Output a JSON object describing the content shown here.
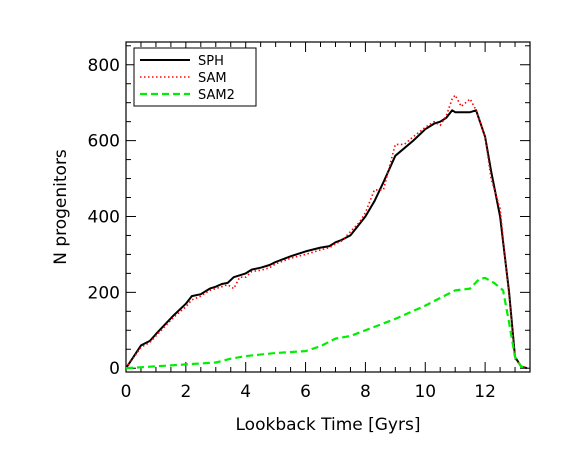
{
  "chart_data": {
    "type": "line",
    "xlabel": "Lookback Time [Gyrs]",
    "ylabel": "N progenitors",
    "xlim": [
      0,
      13.5
    ],
    "ylim": [
      -10,
      860
    ],
    "xticks": [
      0,
      2,
      4,
      6,
      8,
      10,
      12
    ],
    "yticks": [
      0,
      200,
      400,
      600,
      800
    ],
    "legend_position": "top-left",
    "series": [
      {
        "name": "SPH",
        "color": "#000000",
        "style": "solid",
        "x": [
          0,
          0.5,
          0.8,
          1.0,
          1.3,
          1.6,
          2.0,
          2.2,
          2.5,
          2.6,
          2.8,
          3.0,
          3.2,
          3.4,
          3.6,
          3.8,
          4.0,
          4.2,
          4.5,
          4.8,
          5.0,
          5.5,
          6.0,
          6.5,
          6.8,
          7.0,
          7.2,
          7.5,
          7.8,
          8.0,
          8.3,
          8.6,
          9.0,
          9.3,
          9.6,
          10.0,
          10.3,
          10.5,
          10.7,
          10.9,
          11.0,
          11.2,
          11.5,
          11.7,
          12.0,
          12.2,
          12.5,
          12.8,
          13.0,
          13.2,
          13.4
        ],
        "y": [
          0,
          60,
          72,
          90,
          115,
          140,
          170,
          190,
          195,
          200,
          210,
          215,
          222,
          225,
          240,
          245,
          250,
          260,
          265,
          272,
          280,
          295,
          308,
          318,
          322,
          332,
          338,
          350,
          380,
          400,
          440,
          490,
          560,
          580,
          600,
          630,
          645,
          650,
          660,
          680,
          675,
          675,
          675,
          680,
          610,
          520,
          400,
          200,
          30,
          5,
          0
        ]
      },
      {
        "name": "SAM",
        "color": "#ff0000",
        "style": "dotted",
        "x": [
          0,
          0.5,
          0.8,
          1.0,
          1.3,
          1.6,
          2.0,
          2.2,
          2.5,
          2.6,
          2.8,
          3.0,
          3.2,
          3.4,
          3.6,
          3.8,
          4.0,
          4.2,
          4.5,
          4.8,
          5.0,
          5.5,
          6.0,
          6.5,
          6.8,
          7.0,
          7.2,
          7.5,
          7.8,
          8.0,
          8.3,
          8.6,
          9.0,
          9.3,
          9.6,
          10.0,
          10.3,
          10.5,
          10.7,
          10.9,
          11.0,
          11.2,
          11.5,
          11.7,
          12.0,
          12.2,
          12.5,
          12.8,
          13.0,
          13.2,
          13.4
        ],
        "y": [
          0,
          55,
          68,
          85,
          110,
          135,
          162,
          180,
          190,
          195,
          205,
          210,
          215,
          220,
          210,
          240,
          240,
          255,
          258,
          265,
          275,
          290,
          300,
          312,
          318,
          328,
          335,
          360,
          385,
          410,
          470,
          470,
          590,
          590,
          610,
          635,
          650,
          640,
          665,
          710,
          720,
          690,
          710,
          680,
          610,
          500,
          420,
          190,
          25,
          5,
          0
        ]
      },
      {
        "name": "SAM2",
        "color": "#00ee00",
        "style": "dashed",
        "x": [
          0,
          1.0,
          2.0,
          3.0,
          3.5,
          4.0,
          5.0,
          6.0,
          6.5,
          7.0,
          7.5,
          8.0,
          9.0,
          10.0,
          10.5,
          11.0,
          11.5,
          11.8,
          12.0,
          12.3,
          12.6,
          12.8,
          13.0,
          13.2,
          13.4
        ],
        "y": [
          0,
          5,
          10,
          15,
          25,
          32,
          40,
          45,
          58,
          78,
          85,
          100,
          130,
          165,
          185,
          205,
          210,
          235,
          238,
          225,
          205,
          120,
          30,
          5,
          0
        ]
      }
    ]
  }
}
